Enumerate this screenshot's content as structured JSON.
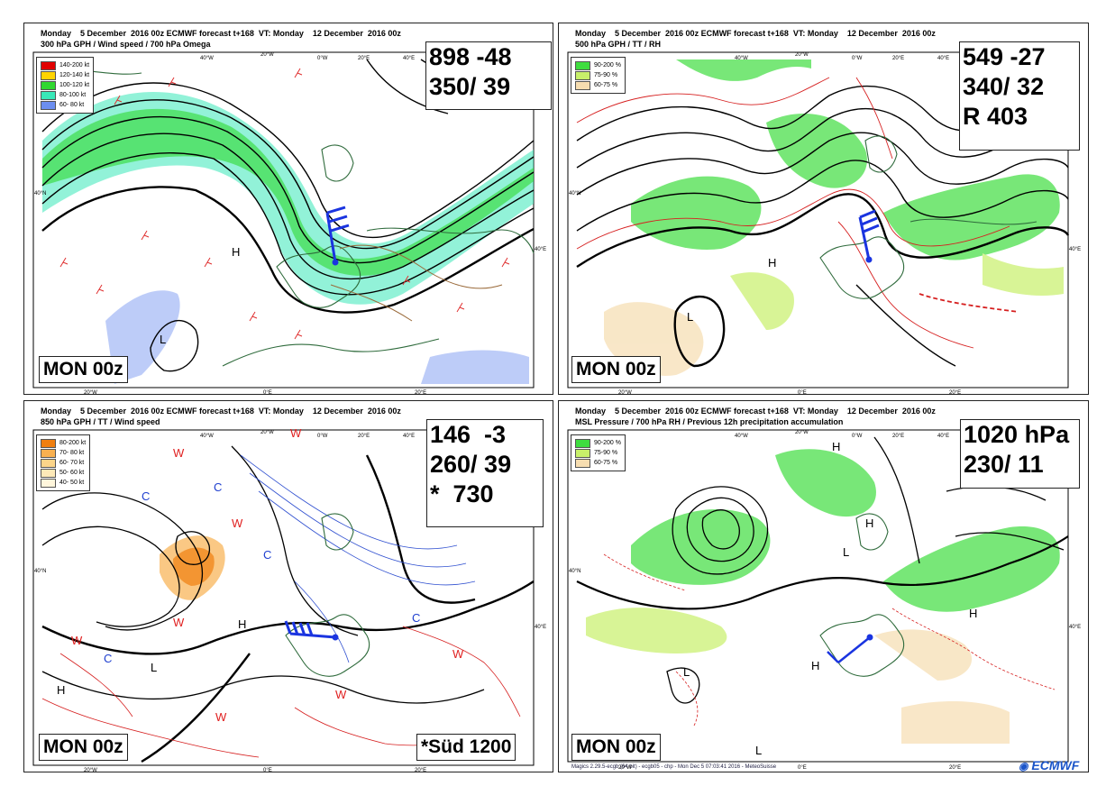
{
  "panels": [
    {
      "header1": "Monday    5 December  2016 00z ECMWF forecast t+168  VT: Monday    12 December  2016 00z",
      "header2": "300 hPa GPH / Wind speed / 700 hPa Omega",
      "legend": [
        {
          "label": "140-200 kt",
          "color": "#e00000"
        },
        {
          "label": "120-140 kt",
          "color": "#ffd400"
        },
        {
          "label": "100-120 kt",
          "color": "#30d830"
        },
        {
          "label": "80-100 kt",
          "color": "#38e8b8"
        },
        {
          "label": "60- 80 kt",
          "color": "#6c8ef0"
        }
      ],
      "info": [
        "898 -48",
        "350/ 39"
      ],
      "tag": "MON 00z",
      "tag2": "",
      "lon_labels": [
        "40°W",
        "20°W",
        "0°W",
        "20°E",
        "40°E",
        "20°W",
        "0°E",
        "20°E"
      ],
      "lat_labels": [
        "40°N",
        "40°E"
      ],
      "symbols": [
        "H",
        "L"
      ]
    },
    {
      "header1": "Monday    5 December  2016 00z ECMWF forecast t+168  VT: Monday    12 December  2016 00z",
      "header2": "500 hPa GPH / TT / RH",
      "legend": [
        {
          "label": "90-200 %",
          "color": "#3fdd3f"
        },
        {
          "label": "75-90 %",
          "color": "#c8f06a"
        },
        {
          "label": "60-75 %",
          "color": "#f6ddb0"
        }
      ],
      "info": [
        "549 -27",
        "340/ 32",
        "R 403"
      ],
      "tag": "MON 00z",
      "tag2": "",
      "lon_labels": [
        "40°W",
        "20°W",
        "0°W",
        "20°E",
        "40°E",
        "20°W",
        "0°E",
        "20°E"
      ],
      "lat_labels": [
        "40°N",
        "40°E"
      ],
      "symbols": [
        "H",
        "L"
      ]
    },
    {
      "header1": "Monday    5 December  2016 00z ECMWF forecast t+168  VT: Monday    12 December  2016 00z",
      "header2": "850 hPa GPH / TT / Wind speed",
      "legend": [
        {
          "label": "80-200 kt",
          "color": "#f07f10"
        },
        {
          "label": "70- 80 kt",
          "color": "#f8b050"
        },
        {
          "label": "60- 70 kt",
          "color": "#fcd58a"
        },
        {
          "label": "50- 60 kt",
          "color": "#fde9b8"
        },
        {
          "label": "40- 50 kt",
          "color": "#fff6dc"
        }
      ],
      "info": [
        "146  -3",
        "260/ 39",
        "*  730"
      ],
      "tag": "MON 00z",
      "tag2": "*Süd 1200",
      "lon_labels": [
        "40°W",
        "20°W",
        "0°W",
        "20°E",
        "40°E",
        "20°W",
        "0°E",
        "20°E"
      ],
      "lat_labels": [
        "40°N",
        "40°E"
      ],
      "symbols": [
        "H",
        "L",
        "C",
        "W"
      ]
    },
    {
      "header1": "Monday    5 December  2016 00z ECMWF forecast t+168  VT: Monday    12 December  2016 00z",
      "header2": "MSL Pressure / 700 hPa RH / Previous 12h precipitation accumulation",
      "legend": [
        {
          "label": "90-200 %",
          "color": "#3fdd3f"
        },
        {
          "label": "75-90 %",
          "color": "#c8f06a"
        },
        {
          "label": "60-75 %",
          "color": "#f6ddb0"
        }
      ],
      "info": [
        "1020 hPa",
        "230/ 11"
      ],
      "tag": "MON 00z",
      "tag2": "",
      "lon_labels": [
        "40°W",
        "20°W",
        "0°W",
        "20°E",
        "40°E",
        "20°W",
        "0°E",
        "20°E"
      ],
      "lat_labels": [
        "40°N",
        "40°E"
      ],
      "symbols": [
        "H",
        "L"
      ]
    }
  ],
  "footer": "Magics 2.29.5-ecgb (64 bit) - ecgb05 - chp - Mon Dec  5 07:03:41 2016 - MeteoSuisse",
  "logo": "ECMWF"
}
